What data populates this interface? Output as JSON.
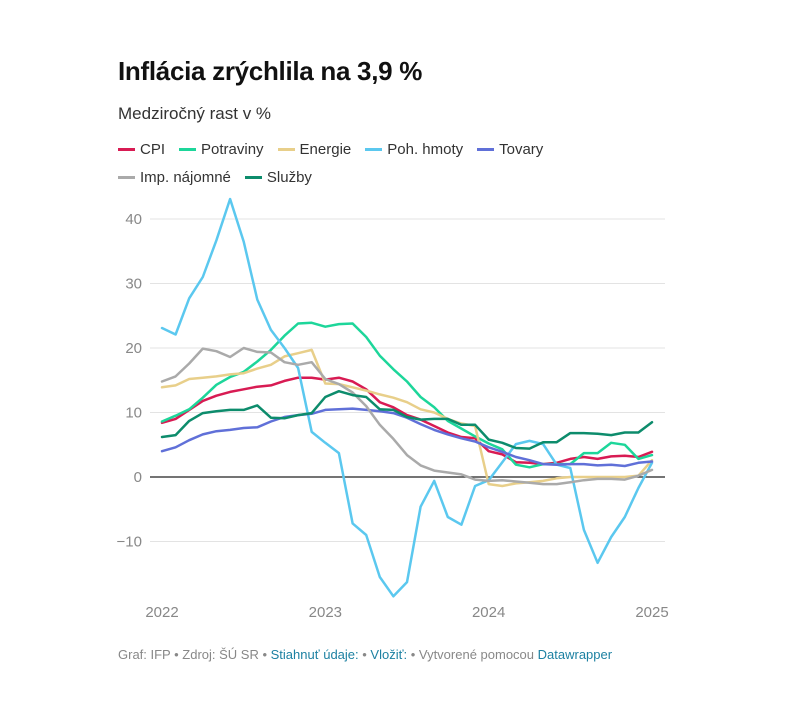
{
  "header": {
    "title": "Inflácia zrýchlila na 3,9 %",
    "subtitle": "Medziročný rast v %"
  },
  "footer": {
    "graf_label": "Graf: IFP",
    "sep1": " • ",
    "source_label": "Zdroj: ŠÚ SR",
    "sep2": " • ",
    "download_link": "Stiahnuť údaje:",
    "sep3": " • ",
    "embed_link": "Vložiť:",
    "sep4": "  • ",
    "created_label": "Vytvorené pomocou ",
    "datawrapper_link": "Datawrapper"
  },
  "chart_data": {
    "type": "line",
    "title": "Inflácia zrýchlila na 3,9 %",
    "subtitle": "Medziročný rast v %",
    "xlabel": "",
    "ylabel": "",
    "ylim": [
      -20,
      45
    ],
    "yticks": [
      40,
      30,
      20,
      10,
      0,
      -10
    ],
    "ytick_labels": [
      "40",
      "30",
      "20",
      "10",
      "0",
      "−10"
    ],
    "xticks": [
      "2022",
      "2023",
      "2024",
      "2025"
    ],
    "x_start": "2022-01",
    "x_end": "2025-01",
    "grid": true,
    "legend_position": "top",
    "series": [
      {
        "name": "CPI",
        "color": "#d81b53",
        "values": [
          8.4,
          9.0,
          10.4,
          11.8,
          12.6,
          13.2,
          13.6,
          14.0,
          14.2,
          14.9,
          15.4,
          15.4,
          15.1,
          15.4,
          14.8,
          13.6,
          11.6,
          10.8,
          9.6,
          8.9,
          7.9,
          6.9,
          6.2,
          6.0,
          4.0,
          3.5,
          2.3,
          2.2,
          2.0,
          2.2,
          2.8,
          3.1,
          2.8,
          3.2,
          3.3,
          3.1,
          3.9
        ]
      },
      {
        "name": "Potraviny",
        "color": "#1dd69a",
        "values": [
          8.6,
          9.5,
          10.5,
          12.3,
          14.3,
          15.5,
          16.3,
          17.9,
          19.7,
          21.9,
          23.8,
          23.9,
          23.3,
          23.7,
          23.8,
          21.7,
          18.8,
          16.7,
          14.8,
          12.4,
          10.8,
          8.7,
          7.5,
          6.3,
          5.2,
          4.3,
          1.9,
          1.5,
          2.0,
          2.0,
          2.0,
          3.7,
          3.7,
          5.3,
          5.0,
          2.8,
          3.4
        ]
      },
      {
        "name": "Energie",
        "color": "#e8cf8a",
        "values": [
          13.9,
          14.2,
          15.2,
          15.4,
          15.6,
          15.9,
          16.1,
          16.8,
          17.4,
          18.7,
          19.2,
          19.7,
          14.5,
          14.4,
          13.9,
          13.4,
          12.8,
          12.3,
          11.6,
          10.5,
          10.0,
          9.0,
          8.3,
          7.9,
          -1.1,
          -1.4,
          -1.0,
          -0.8,
          -0.6,
          -0.2,
          0.0,
          0.0,
          0.0,
          0.0,
          0.0,
          0.2,
          2.6
        ]
      },
      {
        "name": "Poh. hmoty",
        "color": "#5bc8ef",
        "values": [
          23.1,
          22.1,
          27.7,
          31.0,
          36.7,
          43.1,
          36.5,
          27.5,
          22.8,
          20.0,
          16.9,
          7.0,
          5.3,
          3.7,
          -7.2,
          -9.0,
          -15.5,
          -18.5,
          -16.3,
          -4.6,
          -0.6,
          -6.2,
          -7.4,
          -1.4,
          -0.5,
          2.3,
          5.1,
          5.6,
          5.1,
          1.9,
          1.4,
          -8.2,
          -13.3,
          -9.3,
          -6.2,
          -1.7,
          2.2
        ]
      },
      {
        "name": "Tovary",
        "color": "#6070d8",
        "values": [
          4.0,
          4.6,
          5.7,
          6.6,
          7.1,
          7.3,
          7.6,
          7.7,
          8.6,
          9.3,
          9.6,
          9.8,
          10.4,
          10.5,
          10.6,
          10.4,
          10.2,
          9.9,
          9.2,
          8.2,
          7.3,
          6.6,
          6.0,
          5.5,
          4.6,
          3.9,
          3.1,
          2.6,
          2.0,
          1.9,
          2.0,
          2.0,
          1.8,
          1.9,
          1.7,
          2.2,
          2.4
        ]
      },
      {
        "name": "Imp. nájomné",
        "color": "#aaaaaa",
        "values": [
          14.8,
          15.6,
          17.6,
          19.9,
          19.5,
          18.6,
          20.0,
          19.4,
          19.3,
          17.8,
          17.4,
          17.8,
          15.2,
          14.4,
          13.1,
          11.0,
          8.1,
          5.9,
          3.4,
          1.8,
          1.0,
          0.7,
          0.4,
          -0.4,
          -0.6,
          -0.5,
          -0.7,
          -0.9,
          -1.1,
          -1.1,
          -0.8,
          -0.5,
          -0.3,
          -0.3,
          -0.4,
          0.2,
          1.1
        ]
      },
      {
        "name": "Služby",
        "color": "#0d8c6c",
        "values": [
          6.2,
          6.5,
          8.7,
          9.9,
          10.2,
          10.4,
          10.4,
          11.1,
          9.2,
          9.1,
          9.6,
          9.9,
          12.4,
          13.3,
          12.7,
          12.4,
          10.5,
          10.4,
          9.3,
          8.9,
          9.0,
          9.0,
          8.1,
          8.1,
          5.8,
          5.3,
          4.5,
          4.4,
          5.4,
          5.4,
          6.8,
          6.8,
          6.7,
          6.5,
          6.9,
          6.9,
          8.5
        ]
      }
    ]
  }
}
